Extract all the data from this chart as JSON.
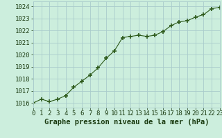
{
  "x": [
    0,
    1,
    2,
    3,
    4,
    5,
    6,
    7,
    8,
    9,
    10,
    11,
    12,
    13,
    14,
    15,
    16,
    17,
    18,
    19,
    20,
    21,
    22,
    23
  ],
  "y": [
    1016.0,
    1016.3,
    1016.1,
    1016.3,
    1016.6,
    1017.3,
    1017.8,
    1018.3,
    1018.9,
    1019.7,
    1020.3,
    1021.4,
    1021.5,
    1021.6,
    1021.5,
    1021.6,
    1021.9,
    1022.4,
    1022.7,
    1022.8,
    1023.1,
    1023.3,
    1023.8,
    1023.9
  ],
  "line_color": "#2d5a1b",
  "marker_color": "#2d5a1b",
  "bg_color": "#cceedd",
  "grid_color": "#aacccc",
  "xlabel": "Graphe pression niveau de la mer (hPa)",
  "xlabel_color": "#1a3a10",
  "xlabel_fontsize": 7.5,
  "tick_color": "#1a3a10",
  "tick_fontsize": 6.5,
  "ytick_min": 1016,
  "ytick_max": 1024,
  "ytick_step": 1,
  "xlim": [
    0,
    23
  ],
  "ylim": [
    1015.6,
    1024.4
  ]
}
